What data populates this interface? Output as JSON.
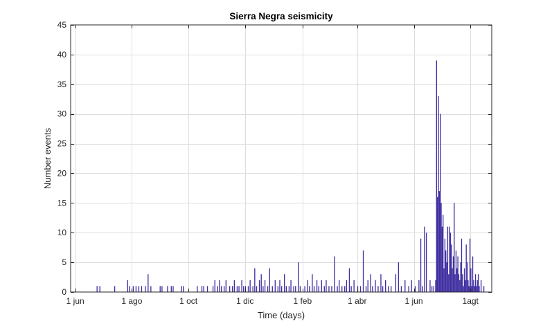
{
  "chart_data": {
    "type": "bar",
    "title": "Sierra Negra seismicity",
    "xlabel": "Time (days)",
    "ylabel": "Number events",
    "ylim": [
      0,
      45
    ],
    "yticks": [
      0,
      5,
      10,
      15,
      20,
      25,
      30,
      35,
      40,
      45
    ],
    "xticks": [
      {
        "label": "1 jun",
        "date": "2017-06-01"
      },
      {
        "label": "1 ago",
        "date": "2017-08-01"
      },
      {
        "label": "1 oct",
        "date": "2017-10-01"
      },
      {
        "label": "1 dic",
        "date": "2017-12-01"
      },
      {
        "label": "1 feb",
        "date": "2018-02-01"
      },
      {
        "label": "1 abr",
        "date": "2018-04-01"
      },
      {
        "label": "1 jun",
        "date": "2018-06-01"
      },
      {
        "label": "1agt",
        "date": "2018-08-01"
      }
    ],
    "xlim": [
      "2017-05-27",
      "2018-08-24"
    ],
    "grid": true,
    "bar_color": "#3f2fa0",
    "events": [
      [
        "2017-06-24",
        1
      ],
      [
        "2017-06-27",
        1
      ],
      [
        "2017-07-13",
        1
      ],
      [
        "2017-07-27",
        2
      ],
      [
        "2017-07-29",
        1
      ],
      [
        "2017-08-02",
        1
      ],
      [
        "2017-08-05",
        1
      ],
      [
        "2017-08-08",
        1
      ],
      [
        "2017-08-11",
        1
      ],
      [
        "2017-08-15",
        1
      ],
      [
        "2017-08-18",
        3
      ],
      [
        "2017-08-21",
        1
      ],
      [
        "2017-08-31",
        1
      ],
      [
        "2017-09-02",
        1
      ],
      [
        "2017-09-08",
        1
      ],
      [
        "2017-09-12",
        1
      ],
      [
        "2017-09-14",
        1
      ],
      [
        "2017-09-23",
        1
      ],
      [
        "2017-09-25",
        1
      ],
      [
        "2017-10-10",
        1
      ],
      [
        "2017-10-15",
        1
      ],
      [
        "2017-10-17",
        1
      ],
      [
        "2017-10-21",
        1
      ],
      [
        "2017-10-27",
        1
      ],
      [
        "2017-10-29",
        2
      ],
      [
        "2017-11-01",
        1
      ],
      [
        "2017-11-03",
        2
      ],
      [
        "2017-11-05",
        1
      ],
      [
        "2017-11-08",
        1
      ],
      [
        "2017-11-10",
        2
      ],
      [
        "2017-11-14",
        1
      ],
      [
        "2017-11-17",
        1
      ],
      [
        "2017-11-19",
        2
      ],
      [
        "2017-11-22",
        1
      ],
      [
        "2017-11-24",
        1
      ],
      [
        "2017-11-27",
        2
      ],
      [
        "2017-11-29",
        1
      ],
      [
        "2017-12-01",
        1
      ],
      [
        "2017-12-04",
        1
      ],
      [
        "2017-12-06",
        2
      ],
      [
        "2017-12-09",
        1
      ],
      [
        "2017-12-11",
        4
      ],
      [
        "2017-12-13",
        1
      ],
      [
        "2017-12-16",
        2
      ],
      [
        "2017-12-18",
        3
      ],
      [
        "2017-12-20",
        1
      ],
      [
        "2017-12-22",
        2
      ],
      [
        "2017-12-25",
        1
      ],
      [
        "2017-12-27",
        4
      ],
      [
        "2017-12-30",
        1
      ],
      [
        "2018-01-02",
        2
      ],
      [
        "2018-01-05",
        1
      ],
      [
        "2018-01-07",
        2
      ],
      [
        "2018-01-09",
        1
      ],
      [
        "2018-01-12",
        3
      ],
      [
        "2018-01-14",
        1
      ],
      [
        "2018-01-17",
        1
      ],
      [
        "2018-01-19",
        2
      ],
      [
        "2018-01-22",
        1
      ],
      [
        "2018-01-24",
        1
      ],
      [
        "2018-01-27",
        5
      ],
      [
        "2018-01-29",
        1
      ],
      [
        "2018-02-03",
        1
      ],
      [
        "2018-02-06",
        2
      ],
      [
        "2018-02-08",
        1
      ],
      [
        "2018-02-11",
        3
      ],
      [
        "2018-02-13",
        1
      ],
      [
        "2018-02-16",
        2
      ],
      [
        "2018-02-18",
        1
      ],
      [
        "2018-02-21",
        2
      ],
      [
        "2018-02-24",
        1
      ],
      [
        "2018-02-26",
        2
      ],
      [
        "2018-03-01",
        1
      ],
      [
        "2018-03-04",
        1
      ],
      [
        "2018-03-07",
        6
      ],
      [
        "2018-03-10",
        1
      ],
      [
        "2018-03-12",
        2
      ],
      [
        "2018-03-15",
        1
      ],
      [
        "2018-03-18",
        1
      ],
      [
        "2018-03-20",
        2
      ],
      [
        "2018-03-23",
        4
      ],
      [
        "2018-03-25",
        1
      ],
      [
        "2018-03-28",
        2
      ],
      [
        "2018-04-01",
        1
      ],
      [
        "2018-04-04",
        1
      ],
      [
        "2018-04-07",
        7
      ],
      [
        "2018-04-10",
        1
      ],
      [
        "2018-04-12",
        2
      ],
      [
        "2018-04-15",
        3
      ],
      [
        "2018-04-17",
        1
      ],
      [
        "2018-04-20",
        2
      ],
      [
        "2018-04-23",
        1
      ],
      [
        "2018-04-26",
        3
      ],
      [
        "2018-04-28",
        1
      ],
      [
        "2018-05-01",
        2
      ],
      [
        "2018-05-04",
        1
      ],
      [
        "2018-05-07",
        1
      ],
      [
        "2018-05-12",
        3
      ],
      [
        "2018-05-15",
        5
      ],
      [
        "2018-05-18",
        1
      ],
      [
        "2018-05-22",
        2
      ],
      [
        "2018-05-26",
        1
      ],
      [
        "2018-05-29",
        2
      ],
      [
        "2018-06-02",
        1
      ],
      [
        "2018-06-06",
        2
      ],
      [
        "2018-06-08",
        9
      ],
      [
        "2018-06-10",
        1
      ],
      [
        "2018-06-12",
        11
      ],
      [
        "2018-06-14",
        10
      ],
      [
        "2018-06-18",
        2
      ],
      [
        "2018-06-20",
        1
      ],
      [
        "2018-06-22",
        1
      ],
      [
        "2018-06-24",
        2
      ],
      [
        "2018-06-25",
        39
      ],
      [
        "2018-06-26",
        16
      ],
      [
        "2018-06-27",
        33
      ],
      [
        "2018-06-28",
        17
      ],
      [
        "2018-06-29",
        30
      ],
      [
        "2018-06-30",
        15
      ],
      [
        "2018-07-01",
        11
      ],
      [
        "2018-07-02",
        13
      ],
      [
        "2018-07-03",
        4
      ],
      [
        "2018-07-04",
        9
      ],
      [
        "2018-07-05",
        7
      ],
      [
        "2018-07-06",
        5
      ],
      [
        "2018-07-07",
        11
      ],
      [
        "2018-07-08",
        3
      ],
      [
        "2018-07-09",
        11
      ],
      [
        "2018-07-10",
        10
      ],
      [
        "2018-07-11",
        8
      ],
      [
        "2018-07-12",
        4
      ],
      [
        "2018-07-13",
        6
      ],
      [
        "2018-07-14",
        15
      ],
      [
        "2018-07-15",
        3
      ],
      [
        "2018-07-16",
        7
      ],
      [
        "2018-07-17",
        4
      ],
      [
        "2018-07-18",
        6
      ],
      [
        "2018-07-19",
        3
      ],
      [
        "2018-07-20",
        2
      ],
      [
        "2018-07-21",
        5
      ],
      [
        "2018-07-22",
        9
      ],
      [
        "2018-07-23",
        3
      ],
      [
        "2018-07-24",
        1
      ],
      [
        "2018-07-25",
        4
      ],
      [
        "2018-07-26",
        2
      ],
      [
        "2018-07-27",
        8
      ],
      [
        "2018-07-28",
        5
      ],
      [
        "2018-07-29",
        2
      ],
      [
        "2018-07-30",
        1
      ],
      [
        "2018-07-31",
        9
      ],
      [
        "2018-08-01",
        4
      ],
      [
        "2018-08-02",
        1
      ],
      [
        "2018-08-03",
        6
      ],
      [
        "2018-08-04",
        2
      ],
      [
        "2018-08-05",
        1
      ],
      [
        "2018-08-06",
        3
      ],
      [
        "2018-08-07",
        1
      ],
      [
        "2018-08-08",
        2
      ],
      [
        "2018-08-09",
        3
      ],
      [
        "2018-08-10",
        1
      ],
      [
        "2018-08-12",
        2
      ],
      [
        "2018-08-15",
        1
      ]
    ]
  }
}
